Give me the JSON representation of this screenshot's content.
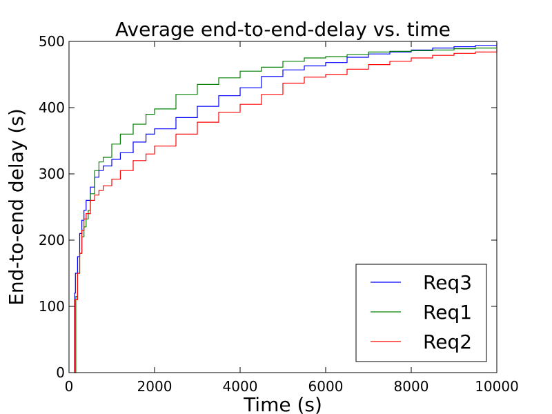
{
  "chart_data": {
    "type": "line",
    "title": "Average end-to-end-delay vs. time",
    "xlabel": "Time (s)",
    "ylabel": "End-to-end delay (s)",
    "xlim": [
      0,
      10000
    ],
    "ylim": [
      0,
      500
    ],
    "xticks": [
      "0",
      "2000",
      "4000",
      "6000",
      "8000",
      "10000"
    ],
    "yticks": [
      "0",
      "100",
      "200",
      "300",
      "400",
      "500"
    ],
    "grid": false,
    "legend_position": "lower-right",
    "series": [
      {
        "name": "Req3",
        "color": "#0000ff",
        "x": [
          120,
          130,
          150,
          200,
          250,
          300,
          350,
          400,
          500,
          600,
          700,
          800,
          1000,
          1200,
          1500,
          1800,
          2000,
          2500,
          3000,
          3500,
          4000,
          4500,
          5000,
          5500,
          6000,
          6500,
          7000,
          7500,
          8000,
          8500,
          9000,
          9500,
          10000
        ],
        "y": [
          0,
          120,
          150,
          175,
          210,
          230,
          245,
          260,
          280,
          295,
          305,
          312,
          322,
          332,
          348,
          360,
          368,
          385,
          402,
          418,
          430,
          447,
          457,
          463,
          468,
          476,
          481,
          484,
          487,
          490,
          492,
          494,
          498
        ]
      },
      {
        "name": "Req1",
        "color": "#008000",
        "x": [
          150,
          160,
          200,
          250,
          300,
          350,
          400,
          450,
          500,
          600,
          700,
          800,
          1000,
          1200,
          1500,
          1800,
          2000,
          2500,
          3000,
          3500,
          4000,
          4500,
          5000,
          5500,
          6000,
          6500,
          7000,
          7500,
          8000,
          8500,
          9000,
          9500,
          10000
        ],
        "y": [
          0,
          115,
          150,
          180,
          205,
          220,
          232,
          245,
          270,
          305,
          318,
          325,
          345,
          360,
          375,
          390,
          398,
          420,
          435,
          445,
          455,
          461,
          470,
          475,
          477,
          480,
          484,
          485,
          486,
          487,
          489,
          490,
          492
        ]
      },
      {
        "name": "Req2",
        "color": "#ff0000",
        "x": [
          130,
          140,
          200,
          250,
          300,
          350,
          400,
          500,
          600,
          700,
          800,
          1000,
          1200,
          1500,
          1800,
          2000,
          2500,
          3000,
          3500,
          4000,
          4500,
          5000,
          5500,
          6000,
          6500,
          7000,
          7500,
          8000,
          8500,
          9000,
          9500,
          10000
        ],
        "y": [
          0,
          110,
          150,
          180,
          215,
          232,
          240,
          260,
          268,
          275,
          282,
          292,
          305,
          320,
          330,
          342,
          360,
          378,
          393,
          405,
          420,
          437,
          446,
          450,
          458,
          465,
          470,
          475,
          479,
          482,
          484,
          488
        ]
      }
    ]
  }
}
